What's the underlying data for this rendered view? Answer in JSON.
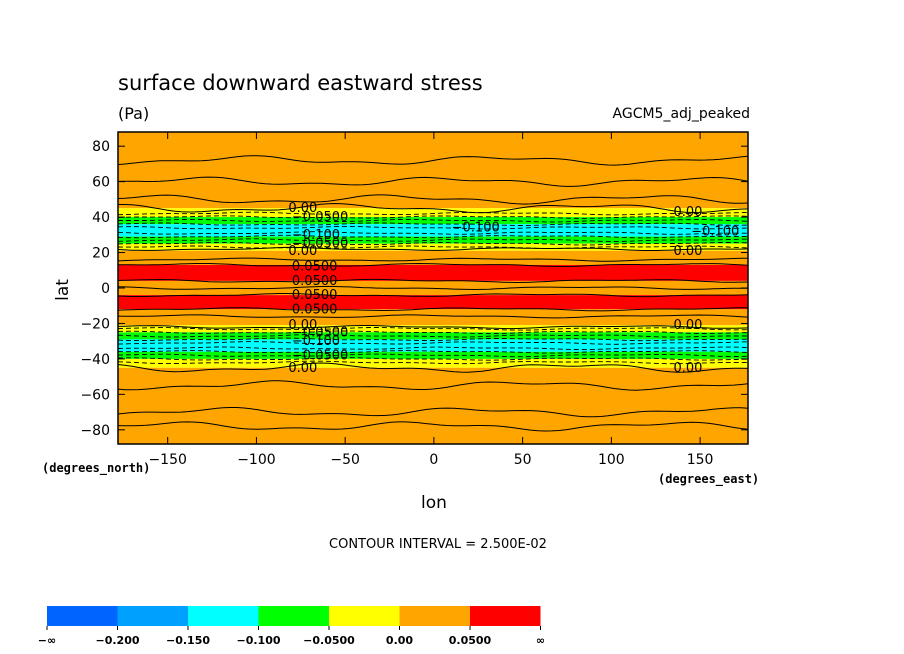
{
  "chart_data": {
    "type": "heatmap",
    "title": "surface downward eastward stress",
    "units": "(Pa)",
    "model_label": "AGCM5_adj_peaked",
    "xlabel": "lon",
    "ylabel": "lat",
    "x_units_label": "(degrees_east)",
    "y_units_label": "(degrees_north)",
    "xlim": [
      -178,
      177
    ],
    "ylim": [
      -88,
      88
    ],
    "x_ticks": [
      -150,
      -100,
      -50,
      0,
      50,
      100,
      150
    ],
    "x_tick_labels": [
      "−150",
      "−100",
      "−50",
      "0",
      "50",
      "100",
      "150"
    ],
    "y_ticks": [
      80,
      60,
      40,
      20,
      0,
      -20,
      -40,
      -60,
      -80
    ],
    "y_tick_labels": [
      "80",
      "60",
      "40",
      "20",
      "0",
      "−20",
      "−40",
      "−60",
      "−80"
    ],
    "contour_interval_text": "CONTOUR INTERVAL = 2.500E-02",
    "legend": {
      "placement": "bottom-left",
      "colors": [
        "#0064ff",
        "#00a0ff",
        "#00ffff",
        "#00ff00",
        "#ffff00",
        "#ffa500",
        "#ff0000"
      ],
      "labels": [
        "−∞",
        "−0.200",
        "−0.150",
        "−0.100",
        "−0.0500",
        "0.00",
        "0.0500",
        "∞"
      ]
    },
    "bands": [
      {
        "lat_top": 88,
        "lat_bottom": 45,
        "color": "#ffa500"
      },
      {
        "lat_top": 45,
        "lat_bottom": 40,
        "color": "#ffff00"
      },
      {
        "lat_top": 40,
        "lat_bottom": 36,
        "color": "#00ff00"
      },
      {
        "lat_top": 36,
        "lat_bottom": 29,
        "color": "#00ffff"
      },
      {
        "lat_top": 29,
        "lat_bottom": 25,
        "color": "#00ff00"
      },
      {
        "lat_top": 25,
        "lat_bottom": 21,
        "color": "#ffff00"
      },
      {
        "lat_top": 21,
        "lat_bottom": 13,
        "color": "#ffa500"
      },
      {
        "lat_top": 13,
        "lat_bottom": 4,
        "color": "#ff0000"
      },
      {
        "lat_top": 4,
        "lat_bottom": -4,
        "color": "#ffa500"
      },
      {
        "lat_top": -4,
        "lat_bottom": -12,
        "color": "#ff0000"
      },
      {
        "lat_top": -12,
        "lat_bottom": -21,
        "color": "#ffa500"
      },
      {
        "lat_top": -21,
        "lat_bottom": -25,
        "color": "#ffff00"
      },
      {
        "lat_top": -25,
        "lat_bottom": -29,
        "color": "#00ff00"
      },
      {
        "lat_top": -29,
        "lat_bottom": -36,
        "color": "#00ffff"
      },
      {
        "lat_top": -36,
        "lat_bottom": -40,
        "color": "#00ff00"
      },
      {
        "lat_top": -40,
        "lat_bottom": -45,
        "color": "#ffff00"
      },
      {
        "lat_top": -45,
        "lat_bottom": -88,
        "color": "#ffa500"
      }
    ],
    "solid_contours": [
      72,
      60,
      50,
      45,
      22,
      16,
      13,
      4,
      0,
      -4,
      -12,
      -16,
      -22,
      -45,
      -55,
      -70,
      -78
    ],
    "dashed_contours": [
      42,
      40,
      38,
      36,
      34,
      31,
      29,
      27,
      25,
      23,
      -23,
      -25,
      -27,
      -29,
      -31,
      -34,
      -36,
      -38,
      -40,
      -42
    ],
    "contour_labels": [
      {
        "text": "0.00",
        "lon": -82,
        "lat": 45
      },
      {
        "text": "−0.0500",
        "lon": -80,
        "lat": 40
      },
      {
        "text": "−0.100",
        "lon": -80,
        "lat": 30
      },
      {
        "text": "−0.0500",
        "lon": -80,
        "lat": 25
      },
      {
        "text": "0.00",
        "lon": -82,
        "lat": 21
      },
      {
        "text": "0.0500",
        "lon": -80,
        "lat": 12
      },
      {
        "text": "0.0500",
        "lon": -80,
        "lat": 4
      },
      {
        "text": "0.0500",
        "lon": -80,
        "lat": -4
      },
      {
        "text": "0.0500",
        "lon": -80,
        "lat": -12
      },
      {
        "text": "0.00",
        "lon": -82,
        "lat": -21
      },
      {
        "text": "−0.0500",
        "lon": -80,
        "lat": -25
      },
      {
        "text": "−0.100",
        "lon": -80,
        "lat": -30
      },
      {
        "text": "−0.0500",
        "lon": -80,
        "lat": -38
      },
      {
        "text": "0.00",
        "lon": -82,
        "lat": -45
      },
      {
        "text": "−0.100",
        "lon": 10,
        "lat": 34
      },
      {
        "text": "0.00",
        "lon": 135,
        "lat": 43
      },
      {
        "text": "−0.100",
        "lon": 145,
        "lat": 32
      },
      {
        "text": "0.00",
        "lon": 135,
        "lat": 21
      },
      {
        "text": "0.00",
        "lon": 135,
        "lat": -21
      },
      {
        "text": "0.00",
        "lon": 135,
        "lat": -45
      }
    ]
  }
}
